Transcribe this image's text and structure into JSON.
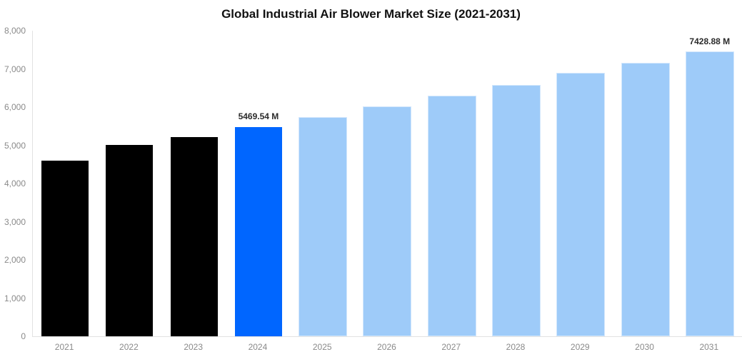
{
  "title": "Global Industrial Air Blower Market Size (2021-2031)",
  "colors": {
    "historical": "#000000",
    "current": "#0066ff",
    "forecast": "#9ecbf9",
    "axis_line": "#e2e2e2",
    "tick_text": "#8a8a8a",
    "label_text": "#2b2b2b"
  },
  "chart_data": {
    "type": "bar",
    "title": "Global Industrial Air Blower Market Size (2021-2031)",
    "unit": "M",
    "categories": [
      "2021",
      "2022",
      "2023",
      "2024",
      "2025",
      "2026",
      "2027",
      "2028",
      "2029",
      "2030",
      "2031"
    ],
    "values": [
      4600,
      5010,
      5220,
      5469.54,
      5705,
      5985,
      6260,
      6550,
      6855,
      7120,
      7428.88
    ],
    "bar_roles": [
      "historical",
      "historical",
      "historical",
      "current",
      "forecast",
      "forecast",
      "forecast",
      "forecast",
      "forecast",
      "forecast",
      "forecast"
    ],
    "data_labels": [
      "",
      "",
      "",
      "5469.54 M",
      "",
      "",
      "",
      "",
      "",
      "",
      "7428.88 M"
    ],
    "xlabel": "",
    "ylabel": "",
    "ylim": [
      0,
      8000
    ],
    "yticks": [
      0,
      1000,
      2000,
      3000,
      4000,
      5000,
      6000,
      7000,
      8000
    ],
    "ytick_labels": [
      "0",
      "1,000",
      "2,000",
      "3,000",
      "4,000",
      "5,000",
      "6,000",
      "7,000",
      "8,000"
    ],
    "grid": false,
    "legend": false
  }
}
